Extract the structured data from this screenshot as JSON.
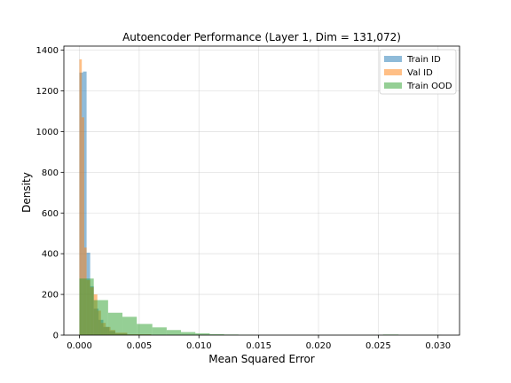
{
  "chart_data": {
    "type": "bar",
    "title": "Autoencoder Performance (Layer 1, Dim = 131,072)",
    "xlabel": "Mean Squared Error",
    "ylabel": "Density",
    "xlim": [
      -0.0013,
      0.0318
    ],
    "ylim": [
      0,
      1420
    ],
    "xticks": [
      0.0,
      0.005,
      0.01,
      0.015,
      0.02,
      0.025,
      0.03
    ],
    "xtick_labels": [
      "0.000",
      "0.005",
      "0.010",
      "0.015",
      "0.020",
      "0.025",
      "0.030"
    ],
    "yticks": [
      0,
      200,
      400,
      600,
      800,
      1000,
      1200,
      1400
    ],
    "ytick_labels": [
      "0",
      "200",
      "400",
      "600",
      "800",
      "1000",
      "1200",
      "1400"
    ],
    "grid": true,
    "legend_position": "top-right",
    "series": [
      {
        "name": "Train ID",
        "color": "#1f77b4",
        "bins": [
          {
            "x0": 0.0,
            "x1": 0.0003,
            "y": 1290
          },
          {
            "x0": 0.0003,
            "x1": 0.0006,
            "y": 1295
          },
          {
            "x0": 0.0006,
            "x1": 0.0009,
            "y": 405
          },
          {
            "x0": 0.0009,
            "x1": 0.0012,
            "y": 240
          },
          {
            "x0": 0.0012,
            "x1": 0.0016,
            "y": 130
          },
          {
            "x0": 0.0016,
            "x1": 0.002,
            "y": 75
          },
          {
            "x0": 0.002,
            "x1": 0.0025,
            "y": 40
          },
          {
            "x0": 0.0025,
            "x1": 0.003,
            "y": 20
          },
          {
            "x0": 0.003,
            "x1": 0.004,
            "y": 8
          },
          {
            "x0": 0.004,
            "x1": 0.006,
            "y": 3
          }
        ]
      },
      {
        "name": "Val ID",
        "color": "#ff7f0e",
        "bins": [
          {
            "x0": 0.0,
            "x1": 0.0002,
            "y": 1355
          },
          {
            "x0": 0.0002,
            "x1": 0.0004,
            "y": 1070
          },
          {
            "x0": 0.0004,
            "x1": 0.0006,
            "y": 430
          },
          {
            "x0": 0.0006,
            "x1": 0.0009,
            "y": 270
          },
          {
            "x0": 0.0009,
            "x1": 0.0012,
            "y": 235
          },
          {
            "x0": 0.0012,
            "x1": 0.0015,
            "y": 200
          },
          {
            "x0": 0.0015,
            "x1": 0.0018,
            "y": 120
          },
          {
            "x0": 0.0018,
            "x1": 0.0022,
            "y": 60
          },
          {
            "x0": 0.0022,
            "x1": 0.0026,
            "y": 40
          },
          {
            "x0": 0.0026,
            "x1": 0.003,
            "y": 25
          },
          {
            "x0": 0.003,
            "x1": 0.004,
            "y": 12
          },
          {
            "x0": 0.004,
            "x1": 0.006,
            "y": 4
          }
        ]
      },
      {
        "name": "Train OOD",
        "color": "#2ca02c",
        "bins": [
          {
            "x0": 0.0,
            "x1": 0.0012,
            "y": 278
          },
          {
            "x0": 0.0012,
            "x1": 0.0024,
            "y": 172
          },
          {
            "x0": 0.0024,
            "x1": 0.0036,
            "y": 110
          },
          {
            "x0": 0.0036,
            "x1": 0.0048,
            "y": 90
          },
          {
            "x0": 0.0048,
            "x1": 0.0061,
            "y": 55
          },
          {
            "x0": 0.0061,
            "x1": 0.0073,
            "y": 38
          },
          {
            "x0": 0.0073,
            "x1": 0.0085,
            "y": 25
          },
          {
            "x0": 0.0085,
            "x1": 0.0097,
            "y": 15
          },
          {
            "x0": 0.0097,
            "x1": 0.0109,
            "y": 9
          },
          {
            "x0": 0.0109,
            "x1": 0.0121,
            "y": 5
          },
          {
            "x0": 0.0121,
            "x1": 0.0133,
            "y": 3
          },
          {
            "x0": 0.0133,
            "x1": 0.0145,
            "y": 2
          },
          {
            "x0": 0.0145,
            "x1": 0.0157,
            "y": 1
          },
          {
            "x0": 0.0157,
            "x1": 0.017,
            "y": 1
          },
          {
            "x0": 0.017,
            "x1": 0.0182,
            "y": 1
          },
          {
            "x0": 0.0182,
            "x1": 0.0194,
            "y": 1
          },
          {
            "x0": 0.0194,
            "x1": 0.0206,
            "y": 1
          },
          {
            "x0": 0.0206,
            "x1": 0.0218,
            "y": 1
          },
          {
            "x0": 0.0218,
            "x1": 0.023,
            "y": 1
          },
          {
            "x0": 0.023,
            "x1": 0.0242,
            "y": 1
          },
          {
            "x0": 0.0242,
            "x1": 0.0254,
            "y": 1
          },
          {
            "x0": 0.0254,
            "x1": 0.0267,
            "y": 3
          },
          {
            "x0": 0.0267,
            "x1": 0.0279,
            "y": 1
          },
          {
            "x0": 0.0279,
            "x1": 0.0291,
            "y": 1
          },
          {
            "x0": 0.0291,
            "x1": 0.0303,
            "y": 1
          }
        ]
      }
    ]
  }
}
